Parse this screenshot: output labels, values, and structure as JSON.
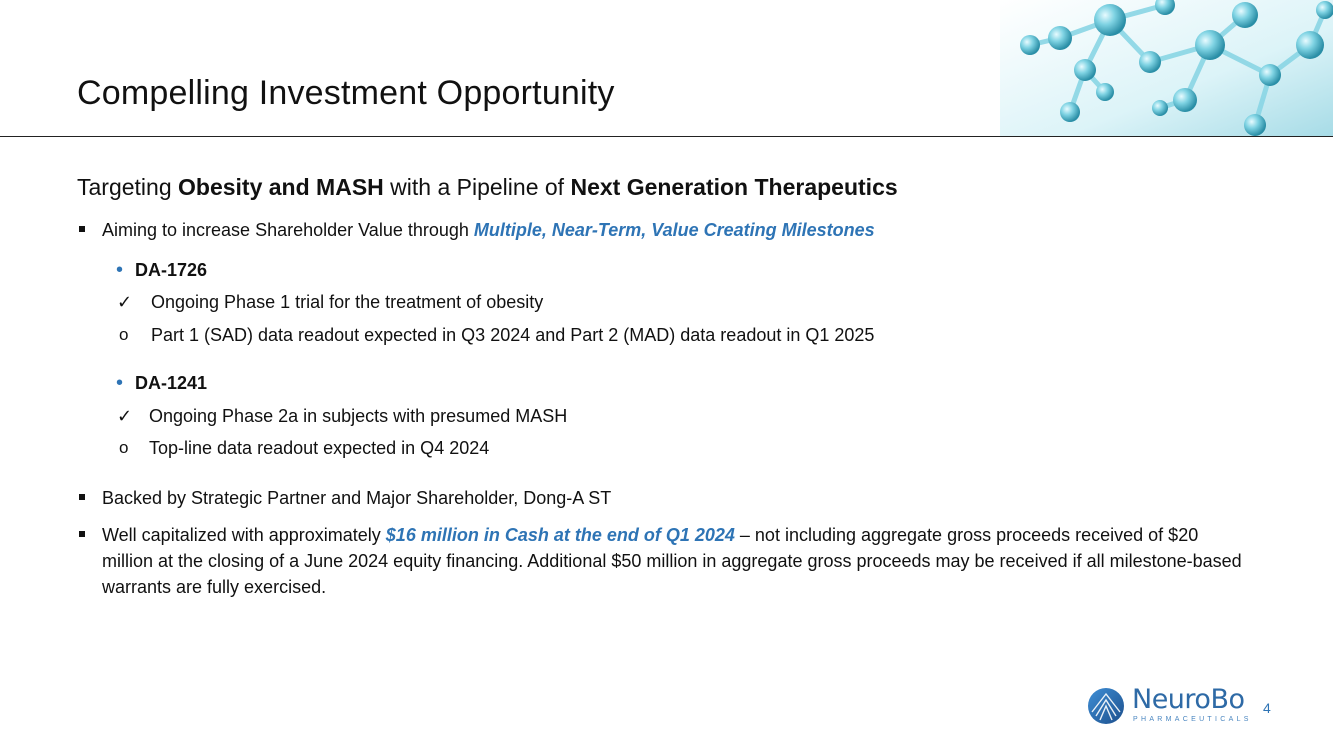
{
  "slide": {
    "title": "Compelling Investment Opportunity",
    "subtitle": {
      "prefix": "Targeting ",
      "bold1": "Obesity and MASH",
      "middle": " with a Pipeline of ",
      "bold2": "Next Generation Therapeutics"
    },
    "bullet1": {
      "text": "Aiming to increase Shareholder Value through ",
      "emphasis": "Multiple, Near-Term, Value Creating Milestones"
    },
    "programs": [
      {
        "name": "DA-1726",
        "check_item": "Ongoing Phase 1 trial for the treatment of obesity",
        "circle_item": "Part 1 (SAD) data readout expected in Q3 2024 and Part 2 (MAD) data readout in Q1 2025"
      },
      {
        "name": "DA-1241",
        "check_item": "Ongoing Phase 2a in subjects with presumed MASH",
        "circle_item": "Top-line data readout expected in Q4 2024"
      }
    ],
    "bullet2": "Backed by Strategic Partner and Major Shareholder, Dong-A ST",
    "bullet3": {
      "prefix": "Well capitalized with approximately ",
      "emphasis": "$16 million in Cash at the end of Q1 2024",
      "suffix": " – not including aggregate gross proceeds received of $20 million at the closing of a June 2024 equity financing. Additional $50 million in aggregate gross proceeds may be received if all milestone-based warrants are fully exercised."
    },
    "markers": {
      "dot": "•",
      "check": "✓",
      "circle": "o"
    },
    "logo": {
      "name": "NeuroBo",
      "tagline": "PHARMACEUTICALS"
    },
    "page_number": "4",
    "colors": {
      "accent": "#2e74b5",
      "text": "#111111",
      "molecule": "#5fc3d6"
    }
  }
}
